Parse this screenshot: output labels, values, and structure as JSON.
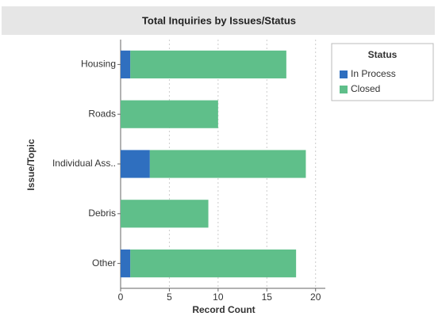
{
  "chart_data": {
    "type": "stacked_barh",
    "title": "Total Inquiries by Issues/Status",
    "xlabel": "Record Count",
    "ylabel": "Issue/Topic",
    "categories": [
      "Housing",
      "Roads",
      "Individual Ass..",
      "Debris",
      "Other"
    ],
    "series": [
      {
        "name": "In Process",
        "color": "#2f6fbf",
        "values": [
          1,
          0,
          3,
          0,
          1
        ]
      },
      {
        "name": "Closed",
        "color": "#5fbf8a",
        "values": [
          16,
          10,
          16,
          9,
          17
        ]
      }
    ],
    "xlim": [
      0,
      21
    ],
    "xticks": [
      0,
      5,
      10,
      15,
      20
    ],
    "grid": true,
    "legend": {
      "title": "Status",
      "position": "right"
    }
  }
}
